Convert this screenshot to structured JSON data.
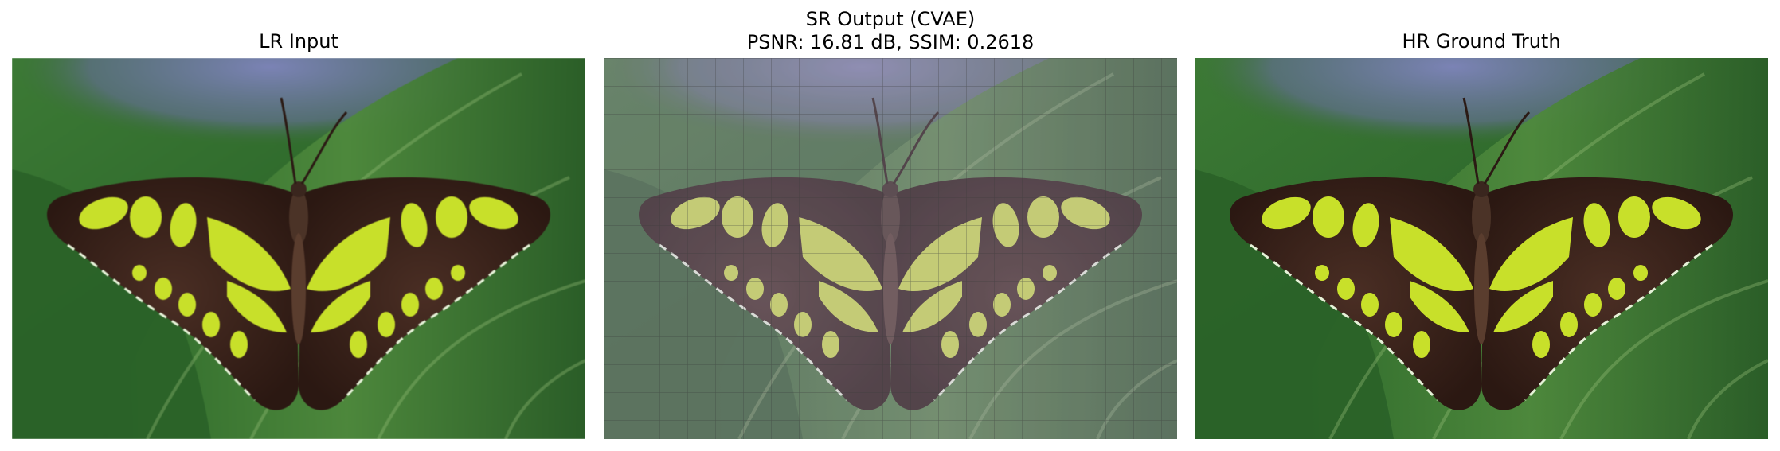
{
  "figure": {
    "panels": [
      {
        "title_lines": [
          "LR Input"
        ],
        "image": "butterfly-photo-lr"
      },
      {
        "title_lines": [
          "SR Output (CVAE)",
          "PSNR: 16.81 dB, SSIM: 0.2618"
        ],
        "image": "butterfly-photo-sr-gridded"
      },
      {
        "title_lines": [
          "HR Ground Truth"
        ],
        "image": "butterfly-photo-hr"
      }
    ]
  },
  "colors": {
    "leaf_dark": "#1f4a22",
    "leaf_mid": "#3f7a36",
    "leaf_light": "#6ea653",
    "sky": "#7b83b5",
    "wing_brown": "#3a231c",
    "wing_spot": "#c8e02a",
    "vein": "#e6f2d8"
  }
}
